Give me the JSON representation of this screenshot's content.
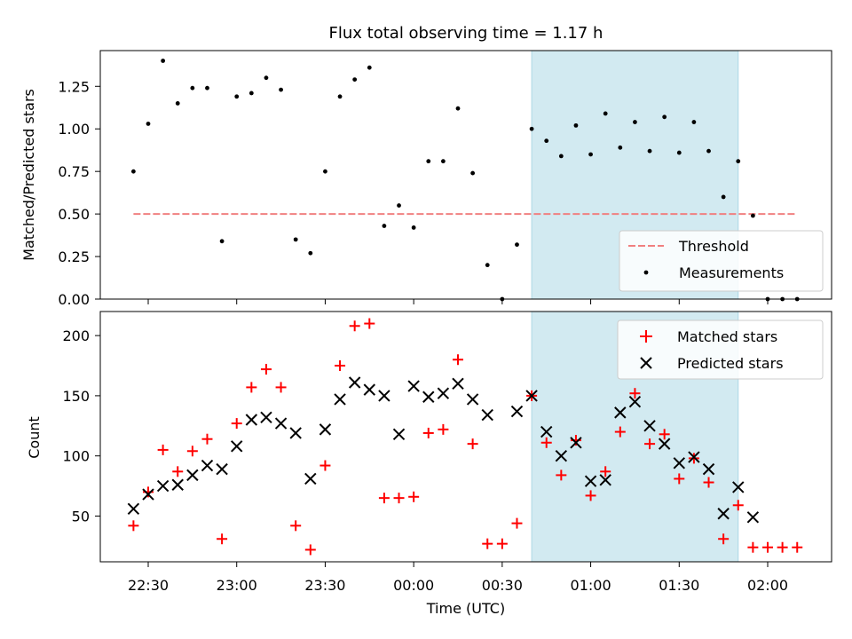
{
  "chart_data": [
    {
      "type": "scatter",
      "title": "Flux total observing time = 1.17 h",
      "xlabel": "",
      "ylabel": "Matched/Predicted stars",
      "ylim": [
        0,
        1.46
      ],
      "yticks": [
        0.0,
        0.25,
        0.5,
        0.75,
        1.0,
        1.25
      ],
      "ytick_labels": [
        "0.00",
        "0.25",
        "0.50",
        "0.75",
        "1.00",
        "1.25"
      ],
      "x_tick_labels_shown": false,
      "shaded_region": {
        "x": [
          "00:40",
          "01:50"
        ],
        "color": "#add8e6"
      },
      "legend_location": "lower right",
      "series": [
        {
          "name": "Threshold",
          "kind": "line",
          "style": "dashed",
          "color": "#f08080",
          "x": [
            "22:25",
            "02:10"
          ],
          "y": [
            0.5,
            0.5
          ]
        },
        {
          "name": "Measurements",
          "kind": "points",
          "marker": "dot",
          "color": "#000000",
          "x": [
            "22:25",
            "22:30",
            "22:35",
            "22:40",
            "22:45",
            "22:50",
            "22:55",
            "23:00",
            "23:05",
            "23:10",
            "23:15",
            "23:20",
            "23:25",
            "23:30",
            "23:35",
            "23:40",
            "23:45",
            "23:50",
            "23:55",
            "00:00",
            "00:05",
            "00:10",
            "00:15",
            "00:20",
            "00:25",
            "00:30",
            "00:35",
            "00:40",
            "00:45",
            "00:50",
            "00:55",
            "01:00",
            "01:05",
            "01:10",
            "01:15",
            "01:20",
            "01:25",
            "01:30",
            "01:35",
            "01:40",
            "01:45",
            "01:50",
            "01:55",
            "02:00",
            "02:05",
            "02:10"
          ],
          "y": [
            0.75,
            1.03,
            1.4,
            1.15,
            1.24,
            1.24,
            0.34,
            1.19,
            1.21,
            1.3,
            1.23,
            0.35,
            0.27,
            0.75,
            1.19,
            1.29,
            1.36,
            0.43,
            0.55,
            0.42,
            0.81,
            0.81,
            1.12,
            0.74,
            0.2,
            0.0,
            0.32,
            1.0,
            0.93,
            0.84,
            1.02,
            0.85,
            1.09,
            0.89,
            1.04,
            0.87,
            1.07,
            0.86,
            1.04,
            0.87,
            0.6,
            0.81,
            0.49,
            0.0,
            0.0,
            0.0
          ]
        }
      ]
    },
    {
      "type": "scatter",
      "title": "",
      "xlabel": "Time (UTC)",
      "ylabel": "Count",
      "ylim": [
        12,
        220
      ],
      "yticks": [
        50,
        100,
        150,
        200
      ],
      "ytick_labels": [
        "50",
        "100",
        "150",
        "200"
      ],
      "xticks": [
        "22:30",
        "23:00",
        "23:30",
        "00:00",
        "00:30",
        "01:00",
        "01:30",
        "02:00"
      ],
      "shaded_region": {
        "x": [
          "00:40",
          "01:50"
        ],
        "color": "#add8e6"
      },
      "legend_location": "upper right",
      "series": [
        {
          "name": "Matched stars",
          "marker": "plus",
          "color": "#ff0000",
          "x": [
            "22:25",
            "22:30",
            "22:35",
            "22:40",
            "22:45",
            "22:50",
            "22:55",
            "23:00",
            "23:05",
            "23:10",
            "23:15",
            "23:20",
            "23:25",
            "23:30",
            "23:35",
            "23:40",
            "23:45",
            "23:50",
            "23:55",
            "00:00",
            "00:05",
            "00:10",
            "00:15",
            "00:20",
            "00:25",
            "00:30",
            "00:35",
            "00:40",
            "00:45",
            "00:50",
            "00:55",
            "01:00",
            "01:05",
            "01:10",
            "01:15",
            "01:20",
            "01:25",
            "01:30",
            "01:35",
            "01:40",
            "01:45",
            "01:50",
            "01:55",
            "02:00",
            "02:05",
            "02:10"
          ],
          "y": [
            42,
            70,
            105,
            87,
            104,
            114,
            31,
            127,
            157,
            172,
            157,
            42,
            22,
            92,
            175,
            208,
            210,
            65,
            65,
            66,
            119,
            122,
            180,
            110,
            27,
            27,
            44,
            150,
            111,
            84,
            113,
            67,
            87,
            120,
            152,
            110,
            118,
            81,
            98,
            78,
            31,
            59,
            24,
            24,
            24,
            24
          ]
        },
        {
          "name": "Predicted stars",
          "marker": "x",
          "color": "#000000",
          "x": [
            "22:25",
            "22:30",
            "22:35",
            "22:40",
            "22:45",
            "22:50",
            "22:55",
            "23:00",
            "23:05",
            "23:10",
            "23:15",
            "23:20",
            "23:25",
            "23:30",
            "23:35",
            "23:40",
            "23:45",
            "23:50",
            "23:55",
            "00:00",
            "00:05",
            "00:10",
            "00:15",
            "00:20",
            "00:25",
            "00:35",
            "00:40",
            "00:45",
            "00:50",
            "00:55",
            "01:00",
            "01:05",
            "01:10",
            "01:15",
            "01:20",
            "01:25",
            "01:30",
            "01:35",
            "01:40",
            "01:45",
            "01:50",
            "01:55"
          ],
          "y": [
            56,
            68,
            75,
            76,
            84,
            92,
            89,
            108,
            130,
            132,
            127,
            119,
            81,
            122,
            147,
            161,
            155,
            150,
            118,
            158,
            149,
            152,
            160,
            147,
            134,
            137,
            150,
            120,
            100,
            111,
            79,
            80,
            136,
            145,
            125,
            110,
            94,
            99,
            89,
            52,
            74,
            49
          ]
        }
      ]
    }
  ]
}
